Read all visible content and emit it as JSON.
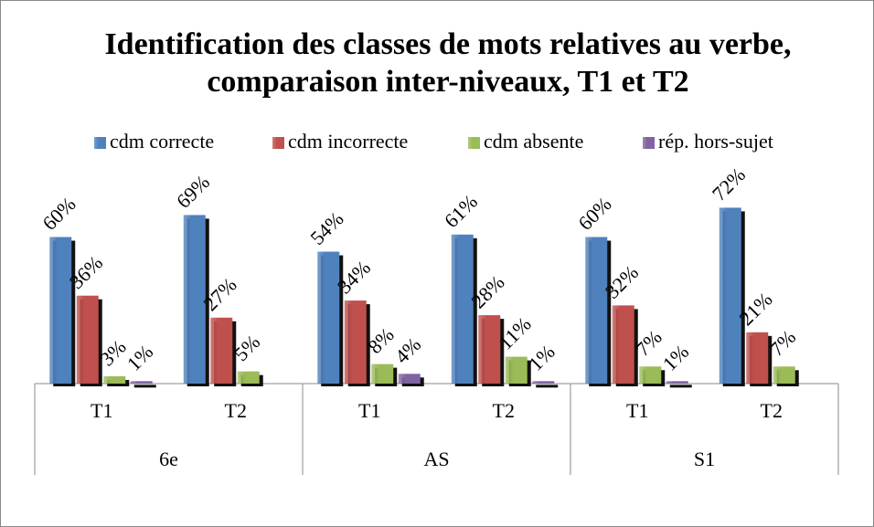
{
  "chart_data": {
    "type": "bar",
    "title": "Identification des classes de mots relatives au verbe, comparaison inter-niveaux, T1 et T2",
    "categories": [
      "T1",
      "T2",
      "T1",
      "T2",
      "T1",
      "T2"
    ],
    "groups": [
      "6e",
      "AS",
      "S1"
    ],
    "ylim": [
      0,
      80
    ],
    "legend": "top",
    "series": [
      {
        "name": "cdm correcte",
        "color": "#4f81bd",
        "values": [
          60,
          69,
          54,
          61,
          60,
          72
        ],
        "value_labels": [
          "60%",
          "69%",
          "54%",
          "61%",
          "60%",
          "72%"
        ]
      },
      {
        "name": "cdm incorrecte",
        "color": "#c0504d",
        "values": [
          36,
          27,
          34,
          28,
          32,
          21
        ],
        "value_labels": [
          "36%",
          "27%",
          "34%",
          "28%",
          "32%",
          "21%"
        ]
      },
      {
        "name": "cdm absente",
        "color": "#9bbb59",
        "values": [
          3,
          5,
          8,
          11,
          7,
          7
        ],
        "value_labels": [
          "3%",
          "5%",
          "8%",
          "11%",
          "7%",
          "7%"
        ]
      },
      {
        "name": "rép. hors-sujet",
        "color": "#8064a2",
        "values": [
          1,
          null,
          4,
          1,
          1,
          null
        ],
        "value_labels": [
          "1%",
          null,
          "4%",
          "1%",
          "1%",
          null
        ]
      }
    ]
  }
}
